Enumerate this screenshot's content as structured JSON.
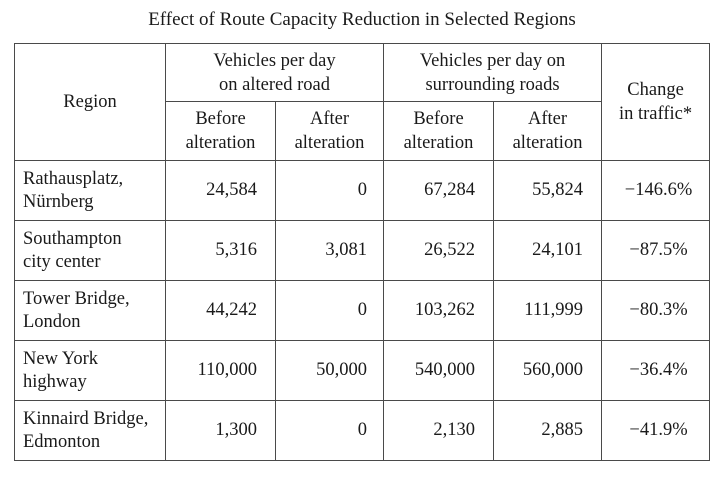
{
  "title": "Effect of Route Capacity Reduction in Selected Regions",
  "headers": {
    "region": "Region",
    "altered_group": [
      "Vehicles per day",
      "on altered road"
    ],
    "surrounding_group": [
      "Vehicles per day on",
      "surrounding roads"
    ],
    "change": [
      "Change",
      "in traffic*"
    ],
    "before": [
      "Before",
      "alteration"
    ],
    "after": [
      "After",
      "alteration"
    ]
  },
  "rows": [
    {
      "region": [
        "Rathausplatz,",
        "Nürnberg"
      ],
      "altered_before": "24,584",
      "altered_after": "0",
      "surrounding_before": "67,284",
      "surrounding_after": "55,824",
      "change": "−146.6%"
    },
    {
      "region": [
        "Southampton",
        "city center"
      ],
      "altered_before": "5,316",
      "altered_after": "3,081",
      "surrounding_before": "26,522",
      "surrounding_after": "24,101",
      "change": "−87.5%"
    },
    {
      "region": [
        "Tower Bridge,",
        "London"
      ],
      "altered_before": "44,242",
      "altered_after": "0",
      "surrounding_before": "103,262",
      "surrounding_after": "111,999",
      "change": "−80.3%"
    },
    {
      "region": [
        "New York",
        "highway"
      ],
      "altered_before": "110,000",
      "altered_after": "50,000",
      "surrounding_before": "540,000",
      "surrounding_after": "560,000",
      "change": "−36.4%"
    },
    {
      "region": [
        "Kinnaird Bridge,",
        "Edmonton"
      ],
      "altered_before": "1,300",
      "altered_after": "0",
      "surrounding_before": "2,130",
      "surrounding_after": "2,885",
      "change": "−41.9%"
    }
  ]
}
